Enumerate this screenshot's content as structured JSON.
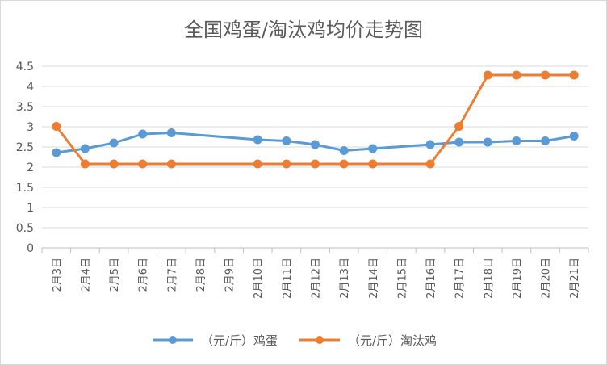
{
  "chart_data": {
    "type": "line",
    "title": "全国鸡蛋/淘汰鸡均价走势图",
    "categories": [
      "2月3日",
      "2月4日",
      "2月5日",
      "2月6日",
      "2月7日",
      "2月8日",
      "2月9日",
      "2月10日",
      "2月11日",
      "2月12日",
      "2月13日",
      "2月14日",
      "2月15日",
      "2月16日",
      "2月17日",
      "2月18日",
      "2月19日",
      "2月20日",
      "2月21日"
    ],
    "series": [
      {
        "name": "（元/斤）鸡蛋",
        "color": "#5B9BD5",
        "values": [
          2.36,
          2.46,
          2.6,
          2.82,
          2.85,
          null,
          null,
          2.68,
          2.65,
          2.56,
          2.41,
          2.46,
          null,
          2.56,
          2.62,
          2.62,
          2.65,
          2.65,
          2.77
        ]
      },
      {
        "name": "（元/斤）淘汰鸡",
        "color": "#ED7D31",
        "values": [
          3.01,
          2.08,
          2.08,
          2.08,
          2.08,
          null,
          null,
          2.08,
          2.08,
          2.08,
          2.08,
          2.08,
          null,
          2.08,
          3.01,
          4.28,
          4.28,
          4.28,
          4.28
        ]
      }
    ],
    "yticks": [
      "0",
      "0.5",
      "1",
      "1.5",
      "2",
      "2.5",
      "3",
      "3.5",
      "4",
      "4.5"
    ],
    "ylim": [
      0,
      4.5
    ],
    "grid": true,
    "legend": "bottom"
  }
}
